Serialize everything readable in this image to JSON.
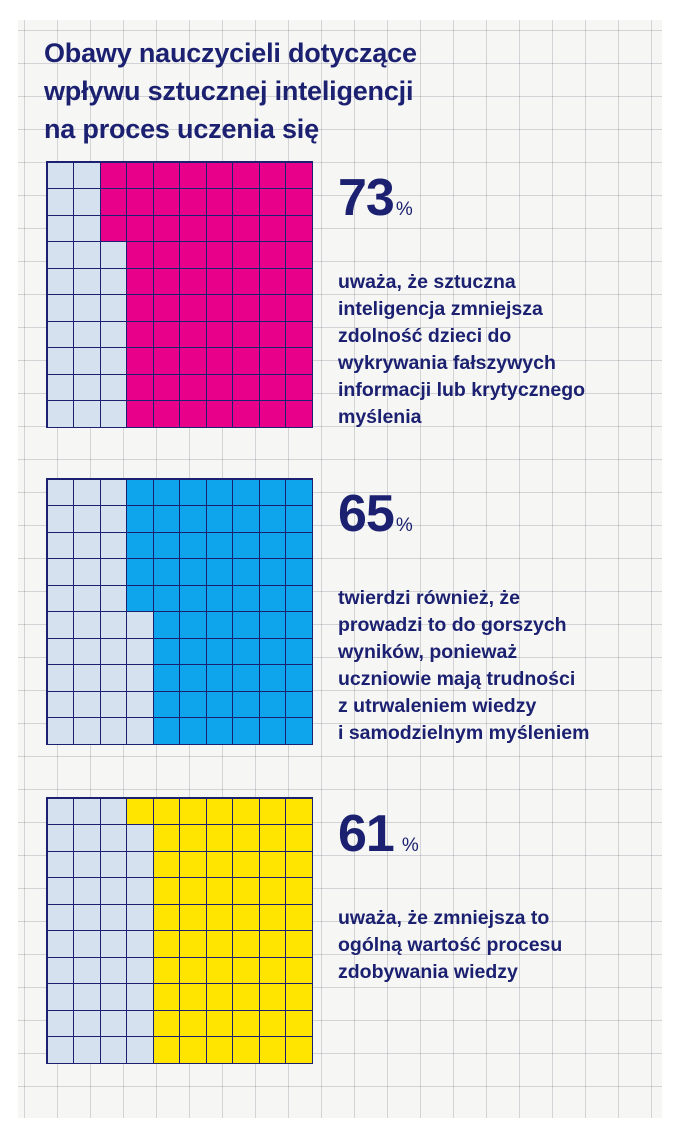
{
  "title": {
    "lines": [
      "Obawy nauczycieli dotyczące",
      "wpływu sztucznej inteligencji",
      "na proces uczenia się"
    ]
  },
  "colors": {
    "text": "#1b2170",
    "empty_cell": "#d6e1ef",
    "grid_line": "#1b2170"
  },
  "chart_data": {
    "type": "waffle",
    "title": "Obawy nauczycieli dotyczące wpływu sztucznej inteligencji na proces uczenia się",
    "grid": [
      10,
      10
    ],
    "fill_order": "column-major from right, filled cells on right side",
    "series": [
      {
        "name": "uważa, że sztuczna inteligencja zmniejsza zdolność dzieci do wykrywania fałszywych informacji lub krytycznego myślenia",
        "value": 73,
        "color": "#e8008a",
        "empty_per_row": [
          2,
          2,
          2,
          3,
          3,
          3,
          3,
          3,
          3,
          3
        ]
      },
      {
        "name": "twierdzi również, że prowadzi to do gorszych wyników, ponieważ uczniowie mają trudności z utrwaleniem wiedzy i samodzielnym myśleniem",
        "value": 65,
        "color": "#0ea5ec",
        "empty_per_row": [
          3,
          3,
          3,
          3,
          3,
          4,
          4,
          4,
          4,
          4
        ]
      },
      {
        "name": "uważa, że zmniejsza to ogólną wartość procesu zdobywania wiedzy",
        "value": 61,
        "color": "#ffe500",
        "empty_per_row": [
          3,
          4,
          4,
          4,
          4,
          4,
          4,
          4,
          4,
          4
        ]
      }
    ]
  },
  "stats": [
    {
      "number": "73",
      "unit": "%",
      "desc_lines": [
        "uważa, że sztuczna",
        "inteligencja zmniejsza",
        "zdolność dzieci do",
        "wykrywania fałszywych",
        "informacji lub krytycznego",
        "myślenia"
      ]
    },
    {
      "number": "65",
      "unit": "%",
      "desc_lines": [
        "twierdzi również, że",
        "prowadzi to do gorszych",
        "wyników, ponieważ",
        "uczniowie mają trudności",
        "z utrwaleniem wiedzy",
        "i samodzielnym myśleniem"
      ]
    },
    {
      "number": "61",
      "unit": "%",
      "desc_lines": [
        "uważa, że zmniejsza to",
        "ogólną wartość procesu",
        "zdobywania wiedzy"
      ]
    }
  ]
}
